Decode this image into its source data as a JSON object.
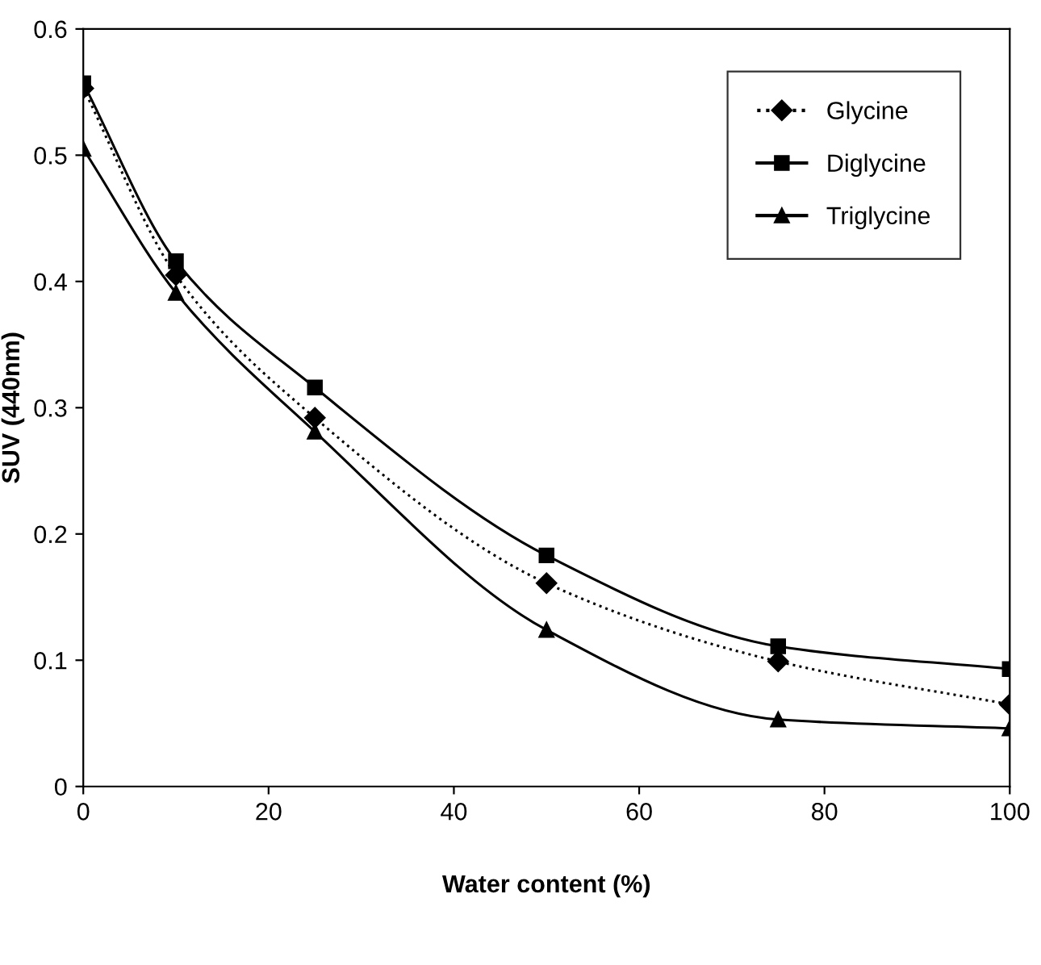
{
  "chart_data": {
    "type": "line",
    "xlabel": "Water content (%)",
    "ylabel": "SUV (440nm)",
    "x": [
      0,
      10,
      25,
      50,
      75,
      100
    ],
    "series": [
      {
        "name": "Glycine",
        "color": "#000000",
        "marker": "diamond",
        "line_style": "dotted",
        "values": [
          0.553,
          0.405,
          0.292,
          0.161,
          0.099,
          0.065
        ]
      },
      {
        "name": "Diglycine",
        "color": "#000000",
        "marker": "square",
        "line_style": "solid",
        "values": [
          0.557,
          0.416,
          0.316,
          0.183,
          0.111,
          0.093
        ]
      },
      {
        "name": "Triglycine",
        "color": "#000000",
        "marker": "triangle",
        "line_style": "solid",
        "values": [
          0.505,
          0.391,
          0.281,
          0.124,
          0.053,
          0.046
        ]
      }
    ],
    "xlim": [
      0,
      100
    ],
    "xticks": [
      0,
      20,
      40,
      60,
      80,
      100
    ],
    "ylim": [
      0,
      0.6
    ],
    "yticks": [
      0,
      0.1,
      0.2,
      0.3,
      0.4,
      0.5,
      0.6
    ],
    "grid": false,
    "legend": "top right"
  }
}
